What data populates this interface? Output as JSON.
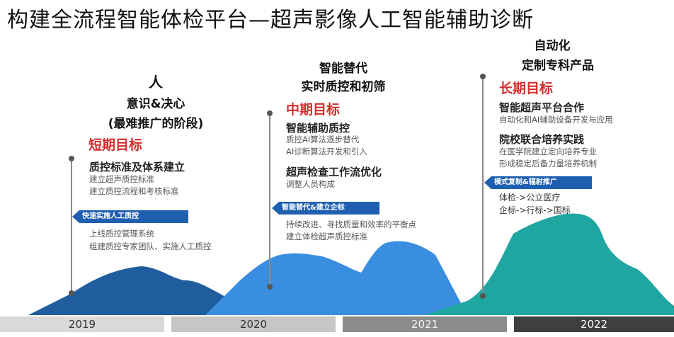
{
  "title": "构建全流程智能体检平台—超声影像人工智能辅助诊断",
  "stages": [
    {
      "heading": [
        "人",
        "意识&决心",
        "(最难推广的阶段)"
      ],
      "goal": "短期目标",
      "blocks": [
        {
          "title": "质控标准及体系建立",
          "lines": [
            "建立超声质控标准",
            "建立质控流程和考核标准"
          ]
        }
      ],
      "tag": "快速实施人工质控",
      "after_lines": [
        "上线质控管理系统",
        "组建质控专家团队、实施人工质控"
      ]
    },
    {
      "heading": [
        "智能替代",
        "实时质控和初筛"
      ],
      "goal": "中期目标",
      "blocks": [
        {
          "title": "智能辅助质控",
          "lines": [
            "质控AI算法逐步替代",
            "AI诊断算法开发和引入"
          ]
        },
        {
          "title": "超声检查工作流优化",
          "lines": [
            "调整人员构成"
          ]
        }
      ],
      "tag": "智能替代&建立企标",
      "after_lines": [
        "持续改进、寻找质量和效率的平衡点",
        "建立体检超声质控标准"
      ]
    },
    {
      "heading": [
        "自动化",
        "定制专科产品"
      ],
      "goal": "长期目标",
      "blocks": [
        {
          "title": "智能超声平台合作",
          "lines": [
            "自动化和AI辅助设备开发与应用"
          ]
        },
        {
          "title": "院校联合培养实践",
          "lines": [
            "在医学院建立定向培养专业",
            "形成稳定后备力量培养机制"
          ]
        }
      ],
      "tag": "模式复制&辐射推广",
      "after_lines": [
        "体检->公立医疗",
        "企标->行标->国标"
      ]
    }
  ],
  "years": [
    "2019",
    "2020",
    "2021",
    "2022"
  ],
  "colors": {
    "goal_red": "#d32f2f",
    "mountain_dark_blue": "#1f5d9e",
    "mountain_light_blue": "#3a8ee0",
    "mountain_teal": "#1fa6a0",
    "tag_blue": "#1f5fb0"
  }
}
